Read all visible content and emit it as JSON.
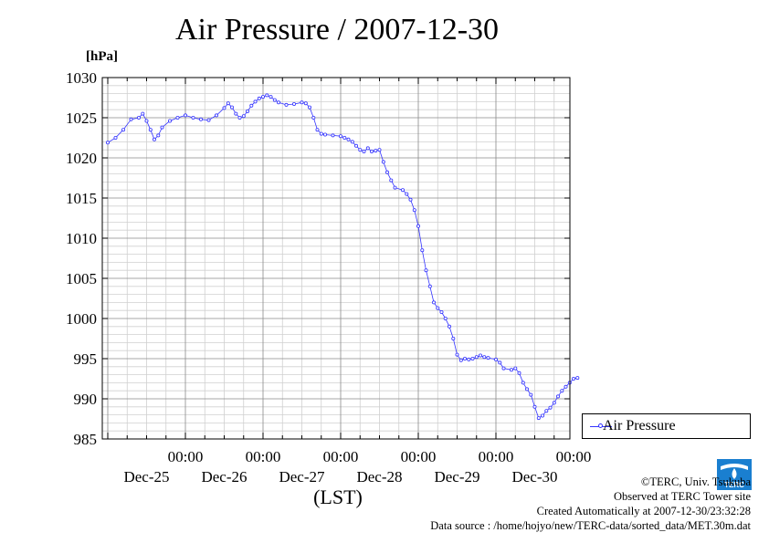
{
  "chart_data": {
    "type": "line",
    "title": "Air Pressure / 2007-12-30",
    "ylabel": "[hPa]",
    "xlabel": "(LST)",
    "ylim": [
      985,
      1030
    ],
    "xlim": [
      0,
      6
    ],
    "yticks": [
      985,
      990,
      995,
      1000,
      1005,
      1010,
      1015,
      1020,
      1025,
      1030
    ],
    "xticks": [
      {
        "x": 1,
        "time": "00:00",
        "date": "Dec-25"
      },
      {
        "x": 2,
        "time": "00:00",
        "date": "Dec-26"
      },
      {
        "x": 3,
        "time": "00:00",
        "date": "Dec-27"
      },
      {
        "x": 4,
        "time": "00:00",
        "date": "Dec-28"
      },
      {
        "x": 5,
        "time": "00:00",
        "date": "Dec-29"
      },
      {
        "x": 6,
        "time": "00:00",
        "date": "Dec-30"
      }
    ],
    "grid": true,
    "legend_position": "right",
    "series": [
      {
        "name": "Air Pressure",
        "color": "#3333ff",
        "points": [
          [
            0.0,
            1021.9
          ],
          [
            0.1,
            1022.5
          ],
          [
            0.2,
            1023.5
          ],
          [
            0.3,
            1024.8
          ],
          [
            0.4,
            1025.0
          ],
          [
            0.45,
            1025.5
          ],
          [
            0.5,
            1024.6
          ],
          [
            0.55,
            1023.5
          ],
          [
            0.6,
            1022.3
          ],
          [
            0.65,
            1022.8
          ],
          [
            0.7,
            1023.8
          ],
          [
            0.8,
            1024.6
          ],
          [
            0.9,
            1025.0
          ],
          [
            1.0,
            1025.3
          ],
          [
            1.1,
            1025.0
          ],
          [
            1.2,
            1024.8
          ],
          [
            1.3,
            1024.7
          ],
          [
            1.4,
            1025.3
          ],
          [
            1.5,
            1026.2
          ],
          [
            1.55,
            1026.8
          ],
          [
            1.6,
            1026.3
          ],
          [
            1.65,
            1025.5
          ],
          [
            1.7,
            1025.0
          ],
          [
            1.75,
            1025.2
          ],
          [
            1.8,
            1025.8
          ],
          [
            1.85,
            1026.5
          ],
          [
            1.9,
            1027.0
          ],
          [
            1.95,
            1027.4
          ],
          [
            2.0,
            1027.6
          ],
          [
            2.05,
            1027.8
          ],
          [
            2.1,
            1027.6
          ],
          [
            2.15,
            1027.2
          ],
          [
            2.2,
            1026.9
          ],
          [
            2.3,
            1026.6
          ],
          [
            2.4,
            1026.7
          ],
          [
            2.5,
            1026.9
          ],
          [
            2.55,
            1026.8
          ],
          [
            2.6,
            1026.3
          ],
          [
            2.65,
            1025.0
          ],
          [
            2.7,
            1023.5
          ],
          [
            2.75,
            1023.0
          ],
          [
            2.8,
            1022.9
          ],
          [
            2.9,
            1022.8
          ],
          [
            3.0,
            1022.7
          ],
          [
            3.05,
            1022.5
          ],
          [
            3.1,
            1022.3
          ],
          [
            3.15,
            1022.0
          ],
          [
            3.2,
            1021.5
          ],
          [
            3.25,
            1021.0
          ],
          [
            3.3,
            1020.8
          ],
          [
            3.35,
            1021.2
          ],
          [
            3.4,
            1020.8
          ],
          [
            3.45,
            1020.9
          ],
          [
            3.5,
            1021.0
          ],
          [
            3.55,
            1019.5
          ],
          [
            3.6,
            1018.2
          ],
          [
            3.65,
            1017.2
          ],
          [
            3.7,
            1016.3
          ],
          [
            3.8,
            1016.0
          ],
          [
            3.85,
            1015.5
          ],
          [
            3.9,
            1014.8
          ],
          [
            3.95,
            1013.5
          ],
          [
            4.0,
            1011.5
          ],
          [
            4.05,
            1008.5
          ],
          [
            4.1,
            1006.0
          ],
          [
            4.15,
            1004.0
          ],
          [
            4.2,
            1002.0
          ],
          [
            4.25,
            1001.3
          ],
          [
            4.3,
            1000.8
          ],
          [
            4.35,
            1000.0
          ],
          [
            4.4,
            999.0
          ],
          [
            4.45,
            997.5
          ],
          [
            4.5,
            995.5
          ],
          [
            4.55,
            994.8
          ],
          [
            4.6,
            995.0
          ],
          [
            4.65,
            994.9
          ],
          [
            4.7,
            995.0
          ],
          [
            4.75,
            995.2
          ],
          [
            4.8,
            995.4
          ],
          [
            4.85,
            995.2
          ],
          [
            4.9,
            995.1
          ],
          [
            5.0,
            994.9
          ],
          [
            5.05,
            994.5
          ],
          [
            5.1,
            993.8
          ],
          [
            5.2,
            993.6
          ],
          [
            5.25,
            993.8
          ],
          [
            5.3,
            993.2
          ],
          [
            5.35,
            992.0
          ],
          [
            5.4,
            991.2
          ],
          [
            5.45,
            990.5
          ],
          [
            5.5,
            989.0
          ],
          [
            5.55,
            987.6
          ],
          [
            5.6,
            987.9
          ],
          [
            5.65,
            988.5
          ],
          [
            5.7,
            988.9
          ],
          [
            5.75,
            989.5
          ],
          [
            5.8,
            990.3
          ],
          [
            5.85,
            991.0
          ],
          [
            5.9,
            991.5
          ],
          [
            5.95,
            992.0
          ],
          [
            6.0,
            992.5
          ],
          [
            6.05,
            992.6
          ]
        ]
      }
    ]
  },
  "credits": {
    "copyright": "©TERC, Univ. Tsukuba",
    "site": "Observed at TERC Tower site",
    "created": "Created Automatically at 2007-12-30/23:32:28",
    "source": "Data source : /home/hojyo/new/TERC-data/sorted_data/MET.30m.dat"
  },
  "logo": {
    "text": "TERC",
    "color": "#1a7fd0"
  }
}
